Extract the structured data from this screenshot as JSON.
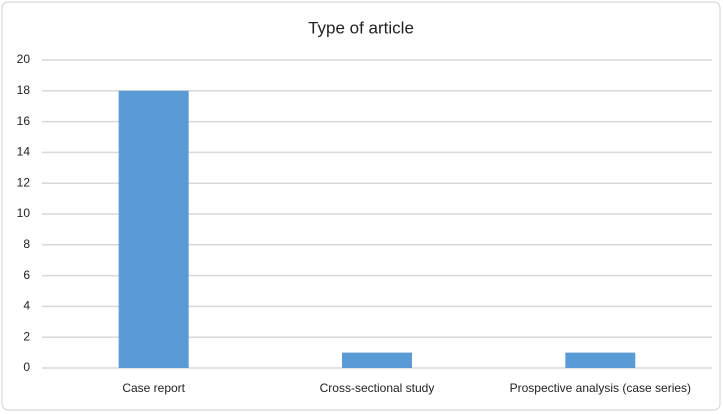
{
  "chart_data": {
    "type": "bar",
    "title": "Type of article",
    "categories": [
      "Case report",
      "Cross-sectional study",
      "Prospective analysis (case series)"
    ],
    "values": [
      18,
      1,
      1
    ],
    "color": "#5b9bd5",
    "ylim": [
      0,
      20
    ],
    "yticks": [
      0,
      2,
      4,
      6,
      8,
      10,
      12,
      14,
      16,
      18,
      20
    ],
    "grid": true
  }
}
